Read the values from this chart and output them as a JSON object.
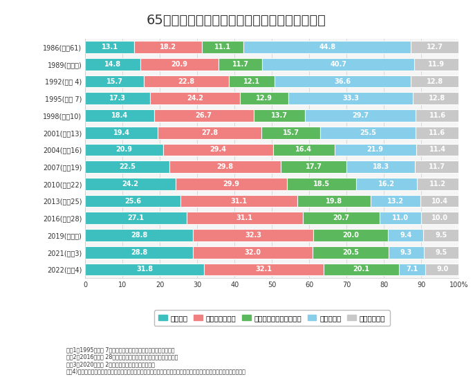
{
  "title": "65歳以上の者のいる世帯の世帯構造の年次推移",
  "years": [
    "1986(昭和61)",
    "1989(平成元)",
    "1992(平成 4)",
    "1995(平成 7)",
    "1998(平成10)",
    "2001(平成13)",
    "2004(平成16)",
    "2007(平成19)",
    "2010(平成22)",
    "2013(平成25)",
    "2016(平成28)",
    "2019(令和元)",
    "2021(令和3)",
    "2022(令和4)"
  ],
  "categories": [
    "単独世帯",
    "夫婦のみの世帯",
    "親と未婚の子のみの世帯",
    "三世代世帯",
    "その他の世帯"
  ],
  "colors": [
    "#3dbfbf",
    "#f08080",
    "#5cb85c",
    "#87ceeb",
    "#c8c8c8"
  ],
  "data": [
    [
      13.1,
      18.2,
      11.1,
      44.8,
      12.7
    ],
    [
      14.8,
      20.9,
      11.7,
      40.7,
      11.9
    ],
    [
      15.7,
      22.8,
      12.1,
      36.6,
      12.8
    ],
    [
      17.3,
      24.2,
      12.9,
      33.3,
      12.8
    ],
    [
      18.4,
      26.7,
      13.7,
      29.7,
      11.6
    ],
    [
      19.4,
      27.8,
      15.7,
      25.5,
      11.6
    ],
    [
      20.9,
      29.4,
      16.4,
      21.9,
      11.4
    ],
    [
      22.5,
      29.8,
      17.7,
      18.3,
      11.7
    ],
    [
      24.2,
      29.9,
      18.5,
      16.2,
      11.2
    ],
    [
      25.6,
      31.1,
      19.8,
      13.2,
      10.4
    ],
    [
      27.1,
      31.1,
      20.7,
      11.0,
      10.0
    ],
    [
      28.8,
      32.3,
      20.0,
      9.4,
      9.5
    ],
    [
      28.8,
      32.0,
      20.5,
      9.3,
      9.5
    ],
    [
      31.8,
      32.1,
      20.1,
      7.1,
      9.0
    ]
  ],
  "notes": [
    "注：1）1995（平成 7）年の数値は、兵庫県を除いたものである。",
    "　　2）2016（平成 28）年の数値は、熊本県を除いたものである。",
    "　　3）2020（令和 2）は、調査を実施していない。",
    "　　4)「親と未婚の子のみの世帯」とは、「夫婦と未婚の子のみ世帯」及び「ひとり親と未婚の子のみの世帯」という。"
  ],
  "bg_color": "#ffffff",
  "plot_bg": "#f5f5f5",
  "bar_height": 0.72,
  "text_color": "#333333",
  "white_color": "#ffffff",
  "grid_color": "#cccccc",
  "bar_text_fontsize": 7.0,
  "ytick_fontsize": 7.0,
  "xtick_fontsize": 7.0,
  "legend_fontsize": 7.5,
  "note_fontsize": 5.8,
  "title_fontsize": 14
}
